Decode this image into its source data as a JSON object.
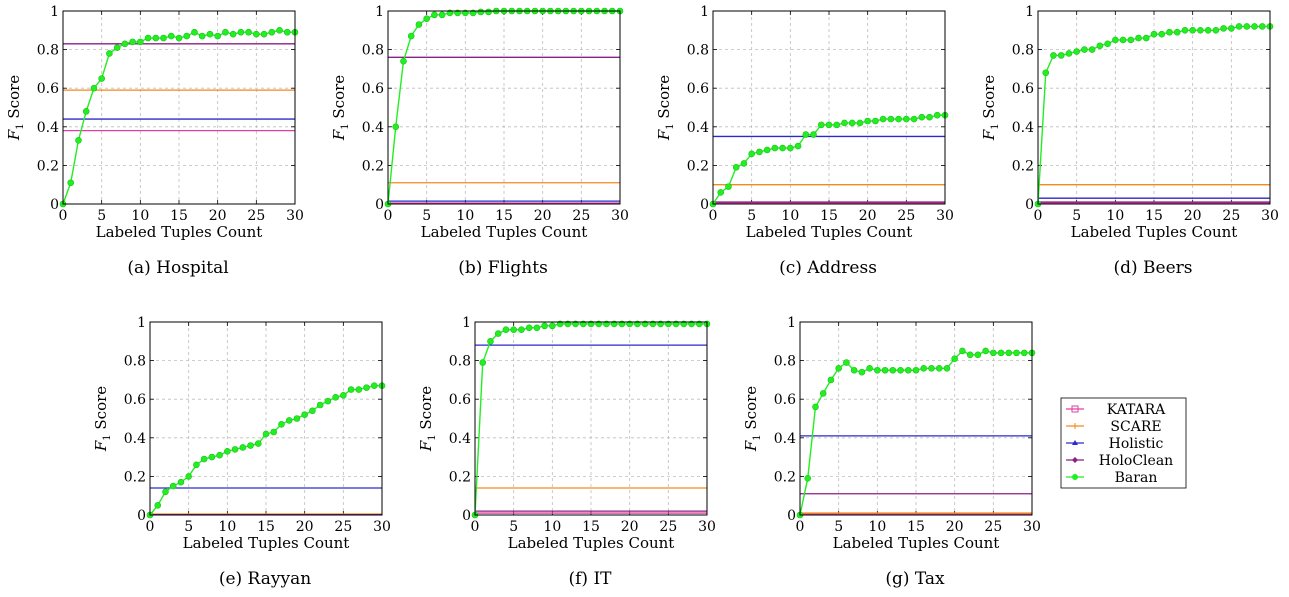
{
  "chart_data": [
    {
      "type": "line",
      "caption": "(a) Hospital",
      "xlabel": "Labeled Tuples Count",
      "ylabel": "Score",
      "ylabel_prefix": "F",
      "ylabel_sub": "1",
      "xlim": [
        0,
        30
      ],
      "ylim": [
        0,
        1
      ],
      "xticks": [
        "0",
        "5",
        "10",
        "15",
        "20",
        "25",
        "30"
      ],
      "yticks": [
        "0",
        "0.2",
        "0.4",
        "0.6",
        "0.8",
        "1"
      ],
      "grid": true,
      "series": [
        {
          "name": "KATARA",
          "values": [
            0.38,
            0.38
          ]
        },
        {
          "name": "SCARE",
          "values": [
            0.59,
            0.59
          ]
        },
        {
          "name": "Holistic",
          "values": [
            0.44,
            0.44
          ]
        },
        {
          "name": "HoloClean",
          "values": [
            0.83,
            0.83
          ]
        },
        {
          "name": "Baran",
          "x": [
            0,
            1,
            2,
            3,
            4,
            5,
            6,
            7,
            8,
            9,
            10,
            11,
            12,
            13,
            14,
            15,
            16,
            17,
            18,
            19,
            20,
            21,
            22,
            23,
            24,
            25,
            26,
            27,
            28,
            29,
            30
          ],
          "values": [
            0,
            0.11,
            0.33,
            0.48,
            0.6,
            0.65,
            0.78,
            0.81,
            0.83,
            0.84,
            0.84,
            0.86,
            0.86,
            0.86,
            0.87,
            0.86,
            0.87,
            0.89,
            0.87,
            0.88,
            0.87,
            0.89,
            0.88,
            0.89,
            0.89,
            0.88,
            0.88,
            0.89,
            0.9,
            0.89,
            0.89
          ]
        }
      ]
    },
    {
      "type": "line",
      "caption": "(b) Flights",
      "xlabel": "Labeled Tuples Count",
      "ylabel": "Score",
      "ylabel_prefix": "F",
      "ylabel_sub": "1",
      "xlim": [
        0,
        30
      ],
      "ylim": [
        0,
        1
      ],
      "xticks": [
        "0",
        "5",
        "10",
        "15",
        "20",
        "25",
        "30"
      ],
      "yticks": [
        "0",
        "0.2",
        "0.4",
        "0.6",
        "0.8",
        "1"
      ],
      "grid": true,
      "series": [
        {
          "name": "KATARA",
          "values": [
            0.005,
            0.005
          ]
        },
        {
          "name": "SCARE",
          "values": [
            0.11,
            0.11
          ]
        },
        {
          "name": "Holistic",
          "values": [
            0.015,
            0.015
          ]
        },
        {
          "name": "HoloClean",
          "values": [
            0.76,
            0.76
          ]
        },
        {
          "name": "Baran",
          "x": [
            0,
            1,
            2,
            3,
            4,
            5,
            6,
            7,
            8,
            9,
            10,
            11,
            12,
            13,
            14,
            15,
            16,
            17,
            18,
            19,
            20,
            21,
            22,
            23,
            24,
            25,
            26,
            27,
            28,
            29,
            30
          ],
          "values": [
            0,
            0.4,
            0.74,
            0.87,
            0.93,
            0.96,
            0.98,
            0.98,
            0.99,
            0.99,
            0.99,
            0.99,
            0.995,
            0.995,
            1,
            1,
            1,
            1,
            1,
            1,
            1,
            1,
            1,
            1,
            1,
            1,
            1,
            1,
            1,
            1,
            1
          ]
        }
      ]
    },
    {
      "type": "line",
      "caption": "(c) Address",
      "xlabel": "Labeled Tuples Count",
      "ylabel": "Score",
      "ylabel_prefix": "F",
      "ylabel_sub": "1",
      "xlim": [
        0,
        30
      ],
      "ylim": [
        0,
        1
      ],
      "xticks": [
        "0",
        "5",
        "10",
        "15",
        "20",
        "25",
        "30"
      ],
      "yticks": [
        "0",
        "0.2",
        "0.4",
        "0.6",
        "0.8",
        "1"
      ],
      "grid": true,
      "series": [
        {
          "name": "KATARA",
          "values": [
            0.005,
            0.005
          ]
        },
        {
          "name": "SCARE",
          "values": [
            0.1,
            0.1
          ]
        },
        {
          "name": "Holistic",
          "values": [
            0.35,
            0.35
          ]
        },
        {
          "name": "HoloClean",
          "values": [
            0.01,
            0.01
          ]
        },
        {
          "name": "Baran",
          "x": [
            0,
            1,
            2,
            3,
            4,
            5,
            6,
            7,
            8,
            9,
            10,
            11,
            12,
            13,
            14,
            15,
            16,
            17,
            18,
            19,
            20,
            21,
            22,
            23,
            24,
            25,
            26,
            27,
            28,
            29,
            30
          ],
          "values": [
            0,
            0.06,
            0.09,
            0.19,
            0.21,
            0.26,
            0.27,
            0.28,
            0.29,
            0.29,
            0.29,
            0.3,
            0.36,
            0.36,
            0.41,
            0.41,
            0.41,
            0.42,
            0.42,
            0.42,
            0.43,
            0.43,
            0.44,
            0.44,
            0.44,
            0.44,
            0.44,
            0.45,
            0.45,
            0.46,
            0.46
          ]
        }
      ]
    },
    {
      "type": "line",
      "caption": "(d) Beers",
      "xlabel": "Labeled Tuples Count",
      "ylabel": "Score",
      "ylabel_prefix": "F",
      "ylabel_sub": "1",
      "xlim": [
        0,
        30
      ],
      "ylim": [
        0,
        1
      ],
      "xticks": [
        "0",
        "5",
        "10",
        "15",
        "20",
        "25",
        "30"
      ],
      "yticks": [
        "0",
        "0.2",
        "0.4",
        "0.6",
        "0.8",
        "1"
      ],
      "grid": true,
      "series": [
        {
          "name": "KATARA",
          "values": [
            0.005,
            0.005
          ]
        },
        {
          "name": "SCARE",
          "values": [
            0.1,
            0.1
          ]
        },
        {
          "name": "Holistic",
          "values": [
            0.03,
            0.03
          ]
        },
        {
          "name": "HoloClean",
          "values": [
            0.01,
            0.01
          ]
        },
        {
          "name": "Baran",
          "x": [
            0,
            1,
            2,
            3,
            4,
            5,
            6,
            7,
            8,
            9,
            10,
            11,
            12,
            13,
            14,
            15,
            16,
            17,
            18,
            19,
            20,
            21,
            22,
            23,
            24,
            25,
            26,
            27,
            28,
            29,
            30
          ],
          "values": [
            0,
            0.68,
            0.77,
            0.77,
            0.78,
            0.79,
            0.8,
            0.8,
            0.82,
            0.83,
            0.85,
            0.85,
            0.85,
            0.86,
            0.86,
            0.88,
            0.88,
            0.89,
            0.89,
            0.9,
            0.9,
            0.9,
            0.9,
            0.9,
            0.91,
            0.91,
            0.92,
            0.92,
            0.92,
            0.92,
            0.92
          ]
        }
      ]
    },
    {
      "type": "line",
      "caption": "(e) Rayyan",
      "xlabel": "Labeled Tuples Count",
      "ylabel": "Score",
      "ylabel_prefix": "F",
      "ylabel_sub": "1",
      "xlim": [
        0,
        30
      ],
      "ylim": [
        0,
        1
      ],
      "xticks": [
        "0",
        "5",
        "10",
        "15",
        "20",
        "25",
        "30"
      ],
      "yticks": [
        "0",
        "0.2",
        "0.4",
        "0.6",
        "0.8",
        "1"
      ],
      "grid": true,
      "series": [
        {
          "name": "KATARA",
          "values": [
            0.003,
            0.003
          ]
        },
        {
          "name": "SCARE",
          "values": [
            0.005,
            0.005
          ]
        },
        {
          "name": "Holistic",
          "values": [
            0.14,
            0.14
          ]
        },
        {
          "name": "HoloClean",
          "values": [
            0.002,
            0.002
          ]
        },
        {
          "name": "Baran",
          "x": [
            0,
            1,
            2,
            3,
            4,
            5,
            6,
            7,
            8,
            9,
            10,
            11,
            12,
            13,
            14,
            15,
            16,
            17,
            18,
            19,
            20,
            21,
            22,
            23,
            24,
            25,
            26,
            27,
            28,
            29,
            30
          ],
          "values": [
            0,
            0.05,
            0.12,
            0.15,
            0.17,
            0.2,
            0.26,
            0.29,
            0.3,
            0.31,
            0.33,
            0.34,
            0.35,
            0.36,
            0.37,
            0.42,
            0.43,
            0.47,
            0.49,
            0.5,
            0.52,
            0.54,
            0.57,
            0.59,
            0.61,
            0.62,
            0.65,
            0.65,
            0.66,
            0.67,
            0.67
          ]
        }
      ]
    },
    {
      "type": "line",
      "caption": "(f) IT",
      "xlabel": "Labeled Tuples Count",
      "ylabel": "Score",
      "ylabel_prefix": "F",
      "ylabel_sub": "1",
      "xlim": [
        0,
        30
      ],
      "ylim": [
        0,
        1
      ],
      "xticks": [
        "0",
        "5",
        "10",
        "15",
        "20",
        "25",
        "30"
      ],
      "yticks": [
        "0",
        "0.2",
        "0.4",
        "0.6",
        "0.8",
        "1"
      ],
      "grid": true,
      "series": [
        {
          "name": "KATARA",
          "values": [
            0.01,
            0.01
          ]
        },
        {
          "name": "SCARE",
          "values": [
            0.14,
            0.14
          ]
        },
        {
          "name": "Holistic",
          "values": [
            0.88,
            0.88
          ]
        },
        {
          "name": "HoloClean",
          "values": [
            0.02,
            0.02
          ]
        },
        {
          "name": "Baran",
          "x": [
            0,
            1,
            2,
            3,
            4,
            5,
            6,
            7,
            8,
            9,
            10,
            11,
            12,
            13,
            14,
            15,
            16,
            17,
            18,
            19,
            20,
            21,
            22,
            23,
            24,
            25,
            26,
            27,
            28,
            29,
            30
          ],
          "values": [
            0,
            0.79,
            0.9,
            0.94,
            0.96,
            0.96,
            0.96,
            0.97,
            0.97,
            0.98,
            0.98,
            0.99,
            0.99,
            0.99,
            0.99,
            0.99,
            0.99,
            0.99,
            0.99,
            0.99,
            0.99,
            0.99,
            0.99,
            0.99,
            0.99,
            0.99,
            0.99,
            0.99,
            0.99,
            0.99,
            0.99
          ]
        }
      ]
    },
    {
      "type": "line",
      "caption": "(g) Tax",
      "xlabel": "Labeled Tuples Count",
      "ylabel": "Score",
      "ylabel_prefix": "F",
      "ylabel_sub": "1",
      "xlim": [
        0,
        30
      ],
      "ylim": [
        0,
        1
      ],
      "xticks": [
        "0",
        "5",
        "10",
        "15",
        "20",
        "25",
        "30"
      ],
      "yticks": [
        "0",
        "0.2",
        "0.4",
        "0.6",
        "0.8",
        "1"
      ],
      "grid": true,
      "series": [
        {
          "name": "KATARA",
          "values": [
            0.005,
            0.005
          ]
        },
        {
          "name": "SCARE",
          "values": [
            0.01,
            0.01
          ]
        },
        {
          "name": "Holistic",
          "values": [
            0.41,
            0.41
          ]
        },
        {
          "name": "HoloClean",
          "values": [
            0.11,
            0.11
          ]
        },
        {
          "name": "Baran",
          "x": [
            0,
            1,
            2,
            3,
            4,
            5,
            6,
            7,
            8,
            9,
            10,
            11,
            12,
            13,
            14,
            15,
            16,
            17,
            18,
            19,
            20,
            21,
            22,
            23,
            24,
            25,
            26,
            27,
            28,
            29,
            30
          ],
          "values": [
            0,
            0.19,
            0.56,
            0.63,
            0.7,
            0.76,
            0.79,
            0.75,
            0.74,
            0.76,
            0.75,
            0.75,
            0.75,
            0.75,
            0.75,
            0.75,
            0.76,
            0.76,
            0.76,
            0.76,
            0.81,
            0.85,
            0.83,
            0.83,
            0.85,
            0.84,
            0.84,
            0.84,
            0.84,
            0.84,
            0.84
          ]
        }
      ]
    }
  ],
  "legend": {
    "placement": "right",
    "items": [
      {
        "label": "KATARA",
        "color": "#e0409f",
        "marker": "square"
      },
      {
        "label": "SCARE",
        "color": "#f28a1e",
        "marker": "plus"
      },
      {
        "label": "Holistic",
        "color": "#2a2acc",
        "marker": "triangle"
      },
      {
        "label": "HoloClean",
        "color": "#8a1f86",
        "marker": "diamond"
      },
      {
        "label": "Baran",
        "color": "#22ee22",
        "marker": "circle"
      }
    ]
  }
}
